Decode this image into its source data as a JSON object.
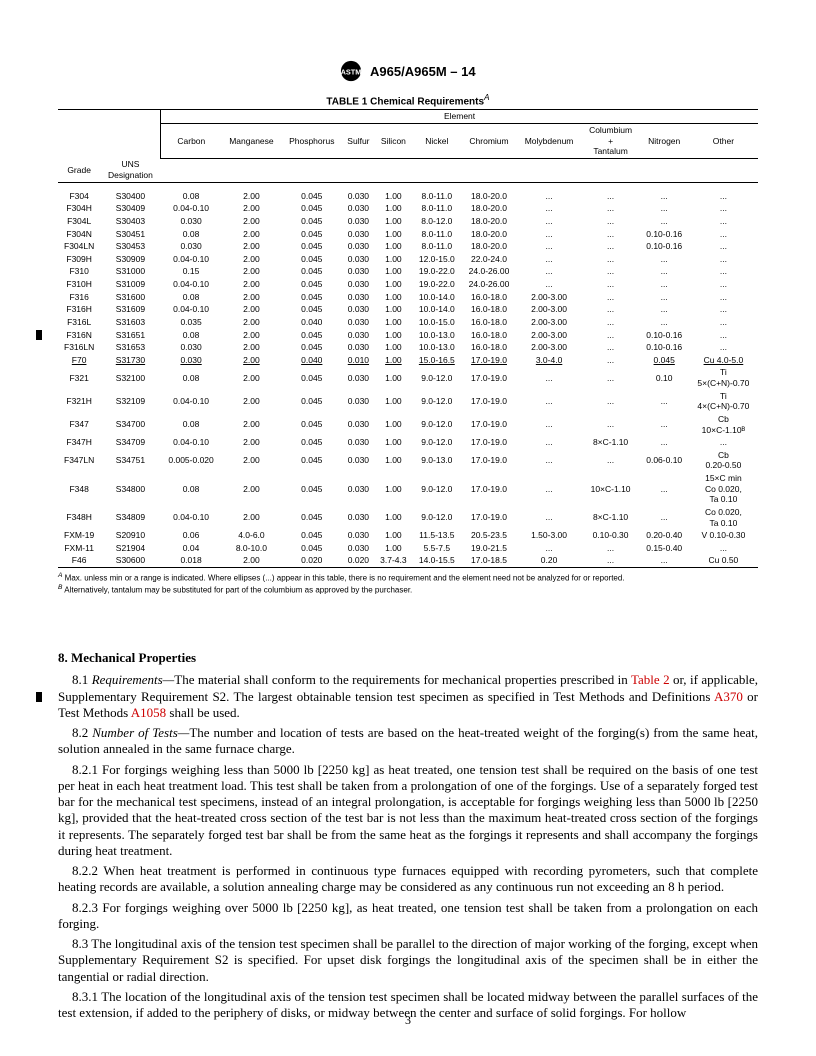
{
  "header": {
    "designation": "A965/A965M – 14"
  },
  "table": {
    "title_prefix": "TABLE 1 ",
    "title": "Chemical Requirements",
    "title_sup": "A",
    "element_span_label": "Element",
    "columns": [
      "Carbon",
      "Manganese",
      "Phosphorus",
      "Sulfur",
      "Silicon",
      "Nickel",
      "Chromium",
      "Molybdenum",
      "Columbium + Tantalum",
      "Nitrogen",
      "Other"
    ],
    "left_headers": [
      "Grade",
      "UNS Designation"
    ],
    "rows": [
      {
        "grade": "F304",
        "uns": "S30400",
        "cells": [
          "0.08",
          "2.00",
          "0.045",
          "0.030",
          "1.00",
          "8.0-11.0",
          "18.0-20.0",
          "...",
          "...",
          "...",
          "..."
        ]
      },
      {
        "grade": "F304H",
        "uns": "S30409",
        "cells": [
          "0.04-0.10",
          "2.00",
          "0.045",
          "0.030",
          "1.00",
          "8.0-11.0",
          "18.0-20.0",
          "...",
          "...",
          "...",
          "..."
        ]
      },
      {
        "grade": "F304L",
        "uns": "S30403",
        "cells": [
          "0.030",
          "2.00",
          "0.045",
          "0.030",
          "1.00",
          "8.0-12.0",
          "18.0-20.0",
          "...",
          "...",
          "...",
          "..."
        ]
      },
      {
        "grade": "F304N",
        "uns": "S30451",
        "cells": [
          "0.08",
          "2.00",
          "0.045",
          "0.030",
          "1.00",
          "8.0-11.0",
          "18.0-20.0",
          "...",
          "...",
          "0.10-0.16",
          "..."
        ]
      },
      {
        "grade": "F304LN",
        "uns": "S30453",
        "cells": [
          "0.030",
          "2.00",
          "0.045",
          "0.030",
          "1.00",
          "8.0-11.0",
          "18.0-20.0",
          "...",
          "...",
          "0.10-0.16",
          "..."
        ]
      },
      {
        "grade": "F309H",
        "uns": "S30909",
        "cells": [
          "0.04-0.10",
          "2.00",
          "0.045",
          "0.030",
          "1.00",
          "12.0-15.0",
          "22.0-24.0",
          "...",
          "...",
          "...",
          "..."
        ]
      },
      {
        "grade": "F310",
        "uns": "S31000",
        "cells": [
          "0.15",
          "2.00",
          "0.045",
          "0.030",
          "1.00",
          "19.0-22.0",
          "24.0-26.00",
          "...",
          "...",
          "...",
          "..."
        ]
      },
      {
        "grade": "F310H",
        "uns": "S31009",
        "cells": [
          "0.04-0.10",
          "2.00",
          "0.045",
          "0.030",
          "1.00",
          "19.0-22.0",
          "24.0-26.00",
          "...",
          "...",
          "...",
          "..."
        ]
      },
      {
        "grade": "F316",
        "uns": "S31600",
        "cells": [
          "0.08",
          "2.00",
          "0.045",
          "0.030",
          "1.00",
          "10.0-14.0",
          "16.0-18.0",
          "2.00-3.00",
          "...",
          "...",
          "..."
        ]
      },
      {
        "grade": "F316H",
        "uns": "S31609",
        "cells": [
          "0.04-0.10",
          "2.00",
          "0.045",
          "0.030",
          "1.00",
          "10.0-14.0",
          "16.0-18.0",
          "2.00-3.00",
          "...",
          "...",
          "..."
        ]
      },
      {
        "grade": "F316L",
        "uns": "S31603",
        "cells": [
          "0.035",
          "2.00",
          "0.040",
          "0.030",
          "1.00",
          "10.0-15.0",
          "16.0-18.0",
          "2.00-3.00",
          "...",
          "...",
          "..."
        ]
      },
      {
        "grade": "F316N",
        "uns": "S31651",
        "cells": [
          "0.08",
          "2.00",
          "0.045",
          "0.030",
          "1.00",
          "10.0-13.0",
          "16.0-18.0",
          "2.00-3.00",
          "...",
          "0.10-0.16",
          "..."
        ]
      },
      {
        "grade": "F316LN",
        "uns": "S31653",
        "cells": [
          "0.030",
          "2.00",
          "0.045",
          "0.030",
          "1.00",
          "10.0-13.0",
          "16.0-18.0",
          "2.00-3.00",
          "...",
          "0.10-0.16",
          "..."
        ]
      },
      {
        "grade": "F70",
        "uns": "S31730",
        "underline": true,
        "cells": [
          "0.030",
          "2.00",
          "0.040",
          "0.010",
          "1.00",
          "15.0-16.5",
          "17.0-19.0",
          "3.0-4.0",
          "...",
          "0.045",
          "Cu 4.0-5.0"
        ]
      },
      {
        "grade": "F321",
        "uns": "S32100",
        "cells": [
          "0.08",
          "2.00",
          "0.045",
          "0.030",
          "1.00",
          "9.0-12.0",
          "17.0-19.0",
          "...",
          "...",
          "0.10",
          "Ti 5×(C+N)-0.70"
        ]
      },
      {
        "grade": "F321H",
        "uns": "S32109",
        "cells": [
          "0.04-0.10",
          "2.00",
          "0.045",
          "0.030",
          "1.00",
          "9.0-12.0",
          "17.0-19.0",
          "...",
          "...",
          "...",
          "Ti 4×(C+N)-0.70"
        ]
      },
      {
        "grade": "F347",
        "uns": "S34700",
        "cells": [
          "0.08",
          "2.00",
          "0.045",
          "0.030",
          "1.00",
          "9.0-12.0",
          "17.0-19.0",
          "...",
          "...",
          "...",
          "Cb 10×C-1.10ᴮ"
        ]
      },
      {
        "grade": "F347H",
        "uns": "S34709",
        "cells": [
          "0.04-0.10",
          "2.00",
          "0.045",
          "0.030",
          "1.00",
          "9.0-12.0",
          "17.0-19.0",
          "...",
          "8×C-1.10",
          "...",
          "..."
        ]
      },
      {
        "grade": "F347LN",
        "uns": "S34751",
        "cells": [
          "0.005-0.020",
          "2.00",
          "0.045",
          "0.030",
          "1.00",
          "9.0-13.0",
          "17.0-19.0",
          "...",
          "...",
          "0.06-0.10",
          "Cb 0.20-0.50"
        ]
      },
      {
        "grade": "F348",
        "uns": "S34800",
        "cells": [
          "0.08",
          "2.00",
          "0.045",
          "0.030",
          "1.00",
          "9.0-12.0",
          "17.0-19.0",
          "...",
          "10×C-1.10",
          "...",
          "15×C min Co 0.020, Ta 0.10"
        ]
      },
      {
        "grade": "F348H",
        "uns": "S34809",
        "cells": [
          "0.04-0.10",
          "2.00",
          "0.045",
          "0.030",
          "1.00",
          "9.0-12.0",
          "17.0-19.0",
          "...",
          "8×C-1.10",
          "...",
          "Co 0.020, Ta 0.10"
        ]
      },
      {
        "grade": "FXM-19",
        "uns": "S20910",
        "cells": [
          "0.06",
          "4.0-6.0",
          "0.045",
          "0.030",
          "1.00",
          "11.5-13.5",
          "20.5-23.5",
          "1.50-3.00",
          "0.10-0.30",
          "0.20-0.40",
          "V 0.10-0.30"
        ]
      },
      {
        "grade": "FXM-11",
        "uns": "S21904",
        "cells": [
          "0.04",
          "8.0-10.0",
          "0.045",
          "0.030",
          "1.00",
          "5.5-7.5",
          "19.0-21.5",
          "...",
          "...",
          "0.15-0.40",
          "..."
        ]
      },
      {
        "grade": "F46",
        "uns": "S30600",
        "cells": [
          "0.018",
          "2.00",
          "0.020",
          "0.020",
          "3.7-4.3",
          "14.0-15.5",
          "17.0-18.5",
          "0.20",
          "...",
          "...",
          "Cu 0.50"
        ]
      }
    ],
    "footnotes": [
      {
        "mark": "A",
        "text": "Max. unless min or a range is indicated. Where ellipses (...) appear in this table, there is no requirement and the element need not be analyzed for or reported."
      },
      {
        "mark": "B",
        "text": "Alternatively, tantalum may be substituted for part of the columbium as approved by the purchaser."
      }
    ]
  },
  "section": {
    "heading": "8.  Mechanical Properties",
    "paragraphs": [
      {
        "num": "8.1",
        "lead": "Requirements—",
        "text": "The material shall conform to the requirements for mechanical properties prescribed in ",
        "ref1": "Table 2",
        "text2": " or, if applicable, Supplementary Requirement S2. The largest obtainable tension test specimen as specified in Test Methods and Definitions ",
        "ref2": "A370",
        "text3": " or Test Methods ",
        "ref3": "A1058",
        "text4": " shall be used."
      },
      {
        "num": "8.2",
        "lead": "Number of Tests—",
        "text": "The number and location of tests are based on the heat-treated weight of the forging(s) from the same heat, solution annealed in the same furnace charge."
      },
      {
        "num": "8.2.1",
        "text": "For forgings weighing less than 5000 lb [2250 kg] as heat treated, one tension test shall be required on the basis of one test per heat in each heat treatment load. This test shall be taken from a prolongation of one of the forgings. Use of a separately forged test bar for the mechanical test specimens, instead of an integral prolongation, is acceptable for forgings weighing less than 5000 lb [2250 kg], provided that the heat-treated cross section of the test bar is not less than the maximum heat-treated cross section of the forgings it represents. The separately forged test bar shall be from the same heat as the forgings it represents and shall accompany the forgings during heat treatment."
      },
      {
        "num": "8.2.2",
        "text": "When heat treatment is performed in continuous type furnaces equipped with recording pyrometers, such that complete heating records are available, a solution annealing charge may be considered as any continuous run not exceeding an 8 h period."
      },
      {
        "num": "8.2.3",
        "text": "For forgings weighing over 5000 lb [2250 kg], as heat treated, one tension test shall be taken from a prolongation on each forging."
      },
      {
        "num": "8.3",
        "text": "The longitudinal axis of the tension test specimen shall be parallel to the direction of major working of the forging, except when Supplementary Requirement S2 is specified. For upset disk forgings the longitudinal axis of the specimen shall be in either the tangential or radial direction."
      },
      {
        "num": "8.3.1",
        "text": "The location of the longitudinal axis of the tension test specimen shall be located midway between the parallel surfaces of the test extension, if added to the periphery of disks, or midway between the center and surface of solid forgings. For hollow"
      }
    ]
  },
  "page_number": "3"
}
